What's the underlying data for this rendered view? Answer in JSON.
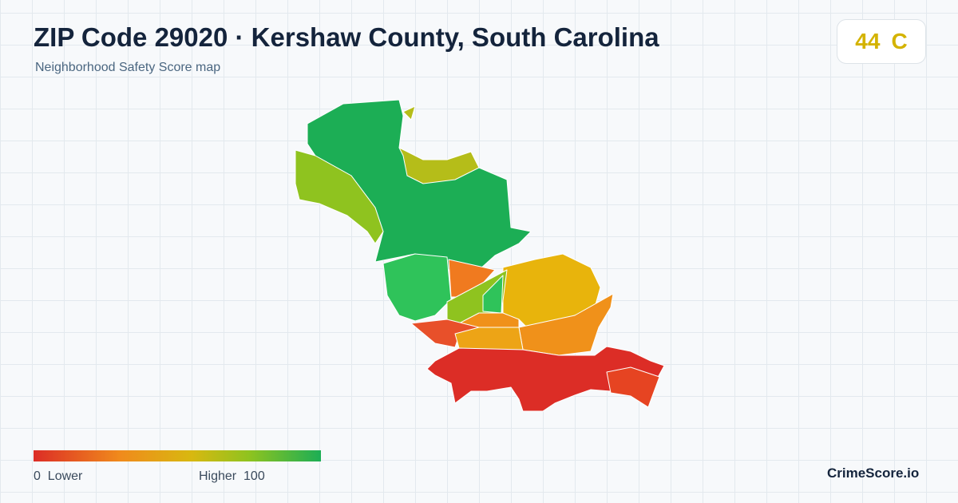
{
  "header": {
    "title": "ZIP Code 29020 · Kershaw County, South Carolina",
    "subtitle": "Neighborhood Safety Score map"
  },
  "score": {
    "value": "44",
    "grade": "C"
  },
  "legend": {
    "low_value": "0",
    "low_label": "Lower",
    "high_label": "Higher",
    "high_value": "100"
  },
  "brand": "CrimeScore.io"
}
